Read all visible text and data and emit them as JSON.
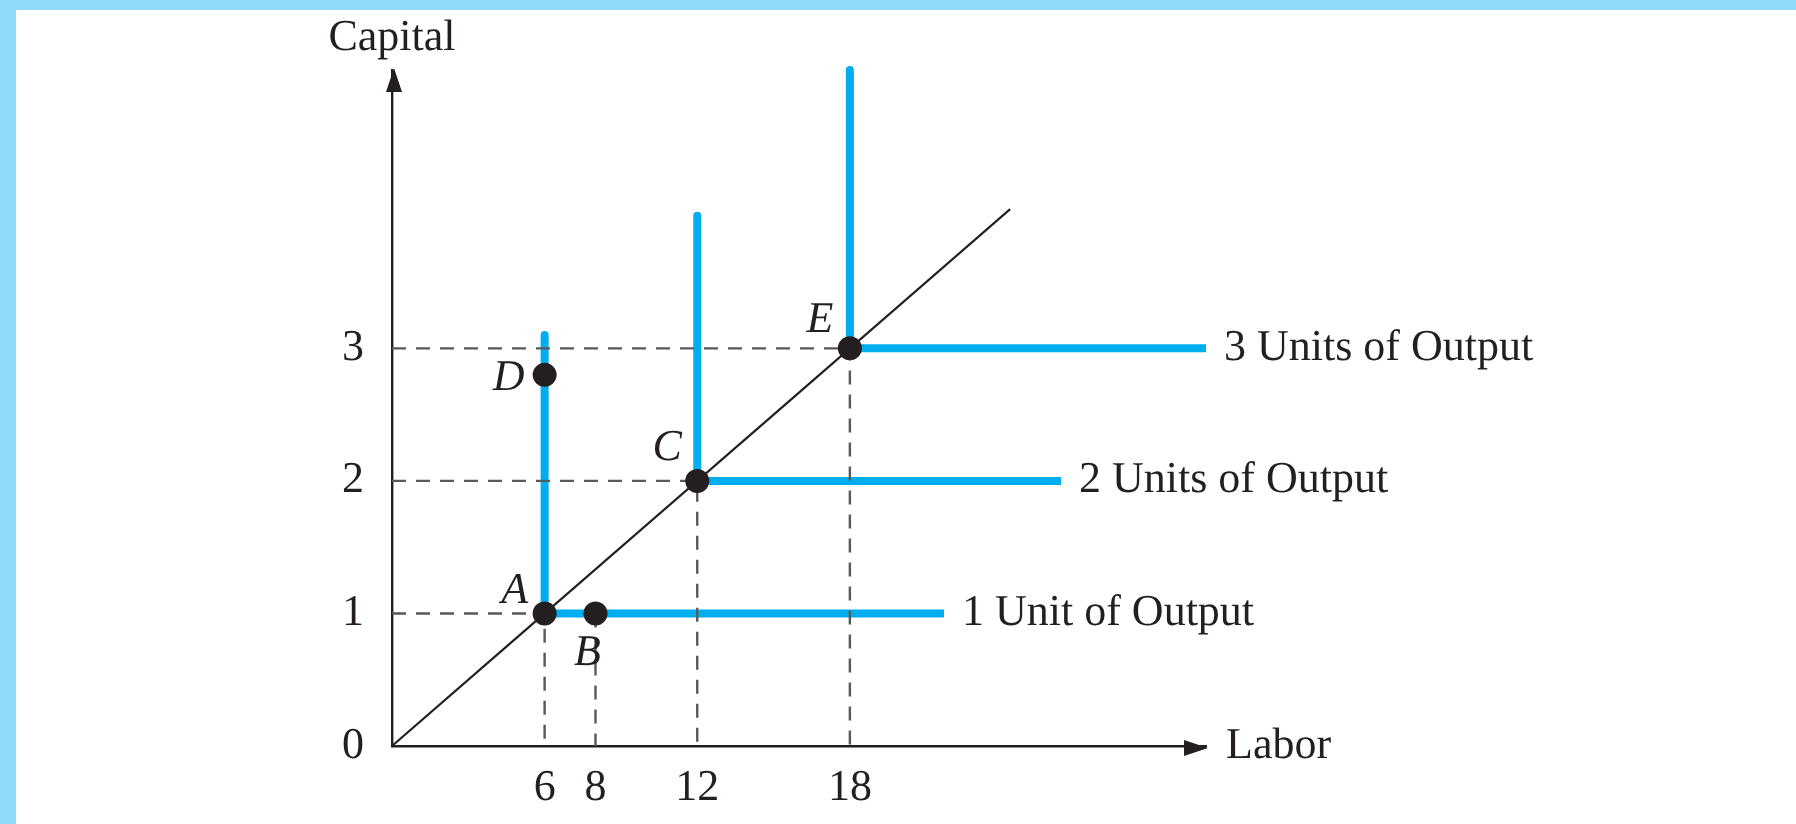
{
  "chart_data": {
    "type": "line",
    "xlabel": "Labor",
    "ylabel": "Capital",
    "xlim": [
      0,
      32
    ],
    "ylim": [
      0,
      5.1
    ],
    "xticks": [
      6,
      8,
      12,
      18
    ],
    "yticks": [
      0,
      1,
      2,
      3
    ],
    "series": [
      {
        "name": "1 Unit of Output",
        "color": "#00aeef",
        "x": [
          6,
          6,
          21.7
        ],
        "values": [
          3.1,
          1,
          1
        ]
      },
      {
        "name": "2 Units of Output",
        "color": "#00aeef",
        "x": [
          12,
          12,
          26.3
        ],
        "values": [
          4,
          2,
          2
        ]
      },
      {
        "name": "3 Units of Output",
        "color": "#00aeef",
        "x": [
          18,
          18,
          32
        ],
        "values": [
          5.1,
          3,
          3
        ]
      },
      {
        "color": "#231f20",
        "x": [
          0,
          24.3
        ],
        "values": [
          0,
          4.05
        ]
      },
      {
        "color": "#58595b",
        "line_style": "dashed",
        "x": [
          0,
          6,
          6
        ],
        "values": [
          1,
          1,
          0
        ]
      },
      {
        "color": "#58595b",
        "line_style": "dashed",
        "x": [
          0,
          12,
          12
        ],
        "values": [
          2,
          2,
          0
        ]
      },
      {
        "color": "#58595b",
        "line_style": "dashed",
        "x": [
          0,
          18,
          18
        ],
        "values": [
          3,
          3,
          0
        ]
      },
      {
        "color": "#58595b",
        "line_style": "dashed",
        "x": [
          8,
          8
        ],
        "values": [
          1,
          0
        ]
      },
      {
        "type": "scatter",
        "marker": "circle",
        "color": "#231f20",
        "x": [
          6,
          8,
          12,
          6,
          18
        ],
        "values": [
          1,
          1,
          2,
          2.8,
          3
        ]
      }
    ],
    "annotations": [
      {
        "text": "A",
        "x": 6,
        "y": 1
      },
      {
        "text": "B",
        "x": 8,
        "y": 1
      },
      {
        "text": "C",
        "x": 12,
        "y": 2
      },
      {
        "text": "D",
        "x": 6,
        "y": 2.8
      },
      {
        "text": "E",
        "x": 18,
        "y": 3
      }
    ]
  }
}
